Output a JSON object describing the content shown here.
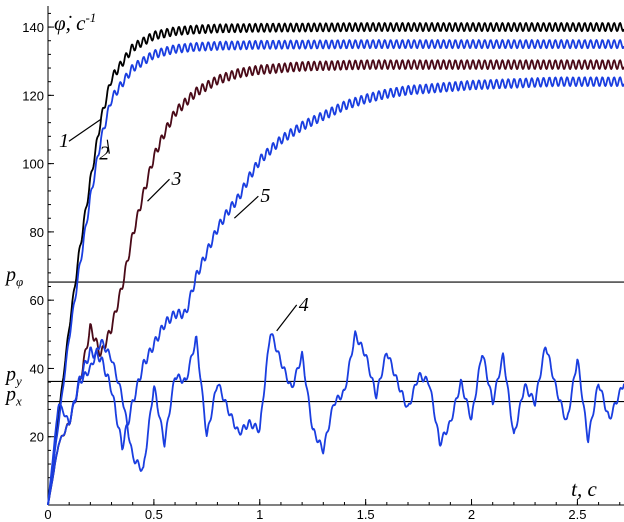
{
  "chart_data": {
    "type": "line",
    "title": "",
    "ylabel": "φ̇, c⁻¹",
    "ylabel_sup": "-1",
    "xlabel": "t, c",
    "xlim": [
      0,
      2.72
    ],
    "ylim": [
      0,
      145
    ],
    "xticks": [
      0,
      0.5,
      1,
      1.5,
      2,
      2.5
    ],
    "xtick_labels": [
      "0",
      "0.5",
      "1",
      "1.5",
      "2",
      "2.5"
    ],
    "yticks": [
      20,
      40,
      60,
      80,
      100,
      120,
      140
    ],
    "ytick_labels": [
      "20",
      "40",
      "60",
      "80",
      "100",
      "120",
      "140"
    ],
    "grid": false,
    "legend": "none",
    "thresholds": [
      {
        "name": "p_φ",
        "label": "p",
        "sub": "φ",
        "value": 65.3
      },
      {
        "name": "p_y",
        "label": "p",
        "sub": "y",
        "value": 36.2
      },
      {
        "name": "p_x",
        "label": "p",
        "sub": "x",
        "value": 30.3
      }
    ],
    "series": [
      {
        "name": "1",
        "color": "#000000",
        "x": [
          0,
          0.05,
          0.1,
          0.15,
          0.2,
          0.25,
          0.3,
          0.4,
          0.5,
          0.6,
          0.7,
          0.8,
          1.0,
          1.5,
          2.0,
          2.5,
          2.72
        ],
        "y": [
          0,
          26,
          52,
          75,
          95,
          113,
          125,
          134,
          137.5,
          138.8,
          139.3,
          139.6,
          139.8,
          140,
          140,
          140,
          140
        ]
      },
      {
        "name": "2",
        "color": "#1a3ee0",
        "x": [
          0,
          0.05,
          0.1,
          0.15,
          0.2,
          0.25,
          0.3,
          0.4,
          0.5,
          0.6,
          0.7,
          0.8,
          1.0,
          1.5,
          2.0,
          2.5,
          2.72
        ],
        "y": [
          0,
          24,
          49,
          70,
          90,
          107,
          119,
          128,
          132,
          133.6,
          134.2,
          134.5,
          134.8,
          135,
          135,
          135,
          135
        ]
      },
      {
        "name": "3",
        "color": "#4a0a18",
        "x": [
          0,
          0.05,
          0.1,
          0.15,
          0.2,
          0.25,
          0.3,
          0.35,
          0.4,
          0.45,
          0.5,
          0.55,
          0.6,
          0.7,
          0.8,
          0.9,
          1.0,
          1.2,
          1.5,
          2.0,
          2.5,
          2.72
        ],
        "y": [
          0,
          18,
          24,
          36,
          52,
          44,
          52,
          64,
          79,
          91,
          102,
          109,
          115,
          121,
          124.5,
          126.5,
          127.5,
          128.5,
          129,
          129,
          129,
          129
        ]
      },
      {
        "name": "4",
        "color": "#1a3ee0",
        "x": [
          0,
          0.05,
          0.1,
          0.15,
          0.2,
          0.25,
          0.3,
          0.35,
          0.4,
          0.45,
          0.5,
          0.55,
          0.6,
          0.65,
          0.7,
          0.75,
          0.8,
          0.85,
          0.9,
          0.95,
          1.0,
          1.05,
          1.1,
          1.15,
          1.2,
          1.25,
          1.3,
          1.35,
          1.4,
          1.45,
          1.5,
          1.55,
          1.6,
          1.65,
          1.7,
          1.75,
          1.8,
          1.85,
          1.9,
          1.95,
          2.0,
          2.05,
          2.1,
          2.15,
          2.2,
          2.25,
          2.3,
          2.35,
          2.4,
          2.45,
          2.5,
          2.55,
          2.6,
          2.65,
          2.72
        ],
        "y": [
          0,
          18,
          24,
          36,
          40,
          48,
          43,
          32,
          14,
          10,
          35,
          18,
          38,
          36,
          49,
          20,
          36,
          28,
          21,
          24,
          22,
          51,
          42,
          34,
          44,
          22,
          16,
          30,
          33,
          50,
          44,
          32,
          45,
          36,
          28,
          38,
          36,
          18,
          24,
          36,
          25,
          45,
          30,
          44,
          20,
          35,
          30,
          47,
          34,
          24,
          43,
          19,
          36,
          25,
          36
        ]
      },
      {
        "name": "5",
        "color": "#1a3ee0",
        "x": [
          0,
          0.05,
          0.1,
          0.15,
          0.2,
          0.25,
          0.3,
          0.35,
          0.4,
          0.45,
          0.5,
          0.55,
          0.6,
          0.65,
          0.7,
          0.75,
          0.8,
          0.85,
          0.9,
          0.95,
          1.0,
          1.1,
          1.2,
          1.3,
          1.4,
          1.5,
          1.6,
          1.7,
          1.8,
          1.9,
          2.0,
          2.2,
          2.4,
          2.6,
          2.72
        ],
        "y": [
          0,
          30,
          24,
          37,
          45,
          43,
          34,
          17,
          30,
          41,
          47,
          53,
          56,
          56,
          67,
          74,
          81,
          86,
          90,
          96,
          101,
          107,
          111,
          114,
          117,
          119,
          120.5,
          121.5,
          122,
          122.5,
          123,
          123.5,
          124,
          124,
          124
        ]
      }
    ],
    "callouts": [
      {
        "label": "1",
        "x": 0.25,
        "y": 113
      },
      {
        "label": "2",
        "x": 0.28,
        "y": 107
      },
      {
        "label": "3",
        "x": 0.47,
        "y": 89
      },
      {
        "label": "4",
        "x": 1.08,
        "y": 51
      },
      {
        "label": "5",
        "x": 0.88,
        "y": 84
      }
    ]
  }
}
